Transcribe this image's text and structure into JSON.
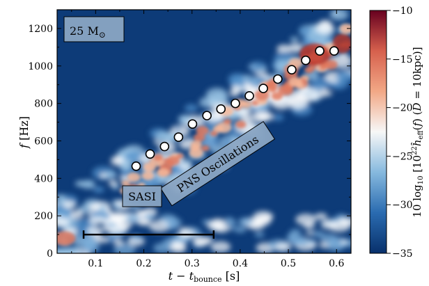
{
  "chart_data": {
    "type": "heatmap",
    "x": [
      0.184,
      0.213,
      0.243,
      0.272,
      0.301,
      0.331,
      0.36,
      0.39,
      0.419,
      0.448,
      0.478,
      0.507,
      0.536,
      0.565,
      0.595
    ],
    "y": [
      465,
      530,
      570,
      620,
      690,
      735,
      770,
      800,
      840,
      880,
      930,
      980,
      1030,
      1080,
      1080
    ],
    "xlabel": "t − t",
    "xlabel_sub": "bounce",
    "xlabel_unit": " [s]",
    "ylabel": "f [Hz]",
    "xlim": [
      0.02,
      0.63
    ],
    "ylim": [
      0,
      1300
    ],
    "xticks": [
      0.1,
      0.2,
      0.3,
      0.4,
      0.5,
      0.6
    ],
    "xtick_labels": [
      "0.1",
      "0.2",
      "0.3",
      "0.4",
      "0.5",
      "0.6"
    ],
    "yticks": [
      0,
      200,
      400,
      600,
      800,
      1000,
      1200
    ],
    "ytick_labels": [
      "0",
      "200",
      "400",
      "600",
      "800",
      "1000",
      "1200"
    ],
    "colorbar": {
      "label": "10 log₁₀ [10²² ĥ_eff(f) (D = 10 kpc)]",
      "range": [
        -35,
        -10
      ],
      "ticks": [
        -35,
        -30,
        -25,
        -20,
        -15,
        -10
      ],
      "tick_labels": [
        "−35",
        "−30",
        "−25",
        "−20",
        "−15",
        "−10"
      ],
      "colormap": [
        "#08306b",
        "#2a6bb0",
        "#86b9de",
        "#f7f7f7",
        "#f2a886",
        "#d6604d",
        "#67001f"
      ]
    },
    "annotations": {
      "mass_label": "25 M",
      "mass_symbol": "⊙",
      "pns_label": "PNS Oscillations",
      "sasi_label": "SASI",
      "sasi_interval": [
        0.075,
        0.345
      ],
      "sasi_freq": 100
    },
    "grid": false,
    "marker": "open-circle"
  }
}
